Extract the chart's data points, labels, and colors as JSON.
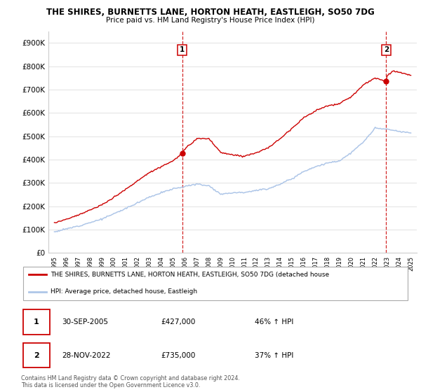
{
  "title": "THE SHIRES, BURNETTS LANE, HORTON HEATH, EASTLEIGH, SO50 7DG",
  "subtitle": "Price paid vs. HM Land Registry's House Price Index (HPI)",
  "hpi_label": "HPI: Average price, detached house, Eastleigh",
  "property_label": "THE SHIRES, BURNETTS LANE, HORTON HEATH, EASTLEIGH, SO50 7DG (detached house",
  "sale1_date": "30-SEP-2005",
  "sale1_price": 427000,
  "sale1_pct": "46% ↑ HPI",
  "sale2_date": "28-NOV-2022",
  "sale2_price": 735000,
  "sale2_pct": "37% ↑ HPI",
  "footnote": "Contains HM Land Registry data © Crown copyright and database right 2024.\nThis data is licensed under the Open Government Licence v3.0.",
  "hpi_color": "#aec6e8",
  "property_color": "#cc0000",
  "vline_color": "#cc0000",
  "ylim": [
    0,
    950000
  ],
  "yticks": [
    0,
    100000,
    200000,
    300000,
    400000,
    500000,
    600000,
    700000,
    800000,
    900000
  ],
  "background_color": "#ffffff",
  "grid_color": "#dddddd",
  "sale1_year": 2005.75,
  "sale2_year": 2022.917
}
